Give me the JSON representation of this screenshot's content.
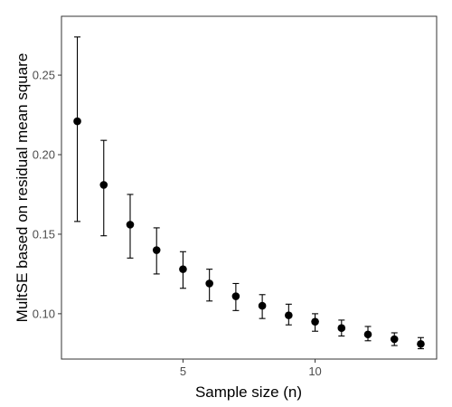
{
  "chart_data": {
    "type": "scatter",
    "title": "",
    "xlabel": "Sample size (n)",
    "ylabel": "MultSE based on residual mean square",
    "xlim": [
      0.4,
      14.6
    ],
    "ylim": [
      0.0715,
      0.287
    ],
    "x_ticks": [
      5,
      10
    ],
    "y_ticks": [
      0.1,
      0.15,
      0.2,
      0.25
    ],
    "y_tick_labels": [
      "0.10",
      "0.15",
      "0.20",
      "0.25"
    ],
    "grid": false,
    "legend": "none",
    "point_color": "#000000",
    "points": [
      {
        "x": 1,
        "y": 0.221,
        "lower": 0.158,
        "upper": 0.274
      },
      {
        "x": 2,
        "y": 0.181,
        "lower": 0.149,
        "upper": 0.209
      },
      {
        "x": 3,
        "y": 0.156,
        "lower": 0.135,
        "upper": 0.175
      },
      {
        "x": 4,
        "y": 0.14,
        "lower": 0.125,
        "upper": 0.154
      },
      {
        "x": 5,
        "y": 0.128,
        "lower": 0.116,
        "upper": 0.139
      },
      {
        "x": 6,
        "y": 0.119,
        "lower": 0.108,
        "upper": 0.128
      },
      {
        "x": 7,
        "y": 0.111,
        "lower": 0.102,
        "upper": 0.119
      },
      {
        "x": 8,
        "y": 0.105,
        "lower": 0.097,
        "upper": 0.112
      },
      {
        "x": 9,
        "y": 0.099,
        "lower": 0.093,
        "upper": 0.106
      },
      {
        "x": 10,
        "y": 0.095,
        "lower": 0.089,
        "upper": 0.1
      },
      {
        "x": 11,
        "y": 0.091,
        "lower": 0.086,
        "upper": 0.096
      },
      {
        "x": 12,
        "y": 0.087,
        "lower": 0.083,
        "upper": 0.092
      },
      {
        "x": 13,
        "y": 0.084,
        "lower": 0.08,
        "upper": 0.088
      },
      {
        "x": 14,
        "y": 0.081,
        "lower": 0.078,
        "upper": 0.085
      }
    ]
  }
}
